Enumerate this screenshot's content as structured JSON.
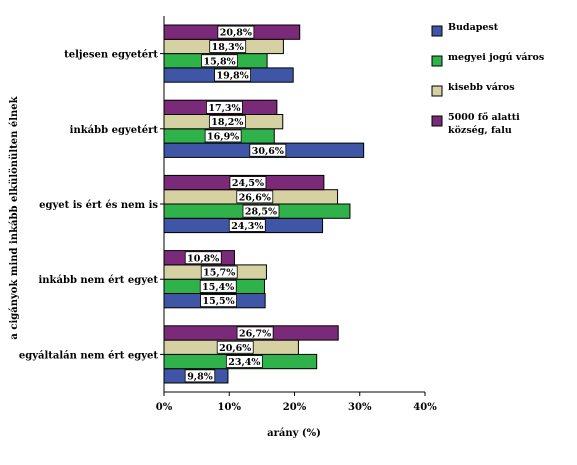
{
  "chart_data": {
    "type": "bar",
    "orientation": "horizontal",
    "categories": [
      "teljesen egyetért",
      "inkább egyetért",
      "egyet is ért és nem is",
      "inkább nem ért egyet",
      "egyáltalán nem ért egyet"
    ],
    "series": [
      {
        "name": "Budapest",
        "color": "#3f56a6",
        "values": [
          19.8,
          30.6,
          24.3,
          15.5,
          9.8
        ]
      },
      {
        "name": "megyei jogú város",
        "color": "#2fb24a",
        "values": [
          15.8,
          16.9,
          28.5,
          15.4,
          23.4
        ]
      },
      {
        "name": "kisebb város",
        "color": "#d6d1a3",
        "values": [
          18.3,
          18.2,
          26.6,
          15.7,
          20.6
        ]
      },
      {
        "name": "5000 fő alatti község, falu",
        "color": "#7a2a78",
        "values": [
          20.8,
          17.3,
          24.5,
          10.8,
          26.7
        ]
      }
    ],
    "data_labels": [
      [
        "19,8%",
        "30,6%",
        "24,3%",
        "15,5%",
        "9,8%"
      ],
      [
        "15,8%",
        "16,9%",
        "28,5%",
        "15,4%",
        "23,4%"
      ],
      [
        "18,3%",
        "18,2%",
        "26,6%",
        "15,7%",
        "20,6%"
      ],
      [
        "20,8%",
        "17,3%",
        "24,5%",
        "10,8%",
        "26,7%"
      ]
    ],
    "xlabel": "arány (%)",
    "ylabel": "a cigányok mind inkább elkülönülten élnek",
    "xlim": [
      0,
      40
    ],
    "xticks": [
      0,
      10,
      20,
      30,
      40
    ],
    "xtick_labels": [
      "0%",
      "10%",
      "20%",
      "30%",
      "40%"
    ],
    "grid": false,
    "legend_position": "right"
  }
}
